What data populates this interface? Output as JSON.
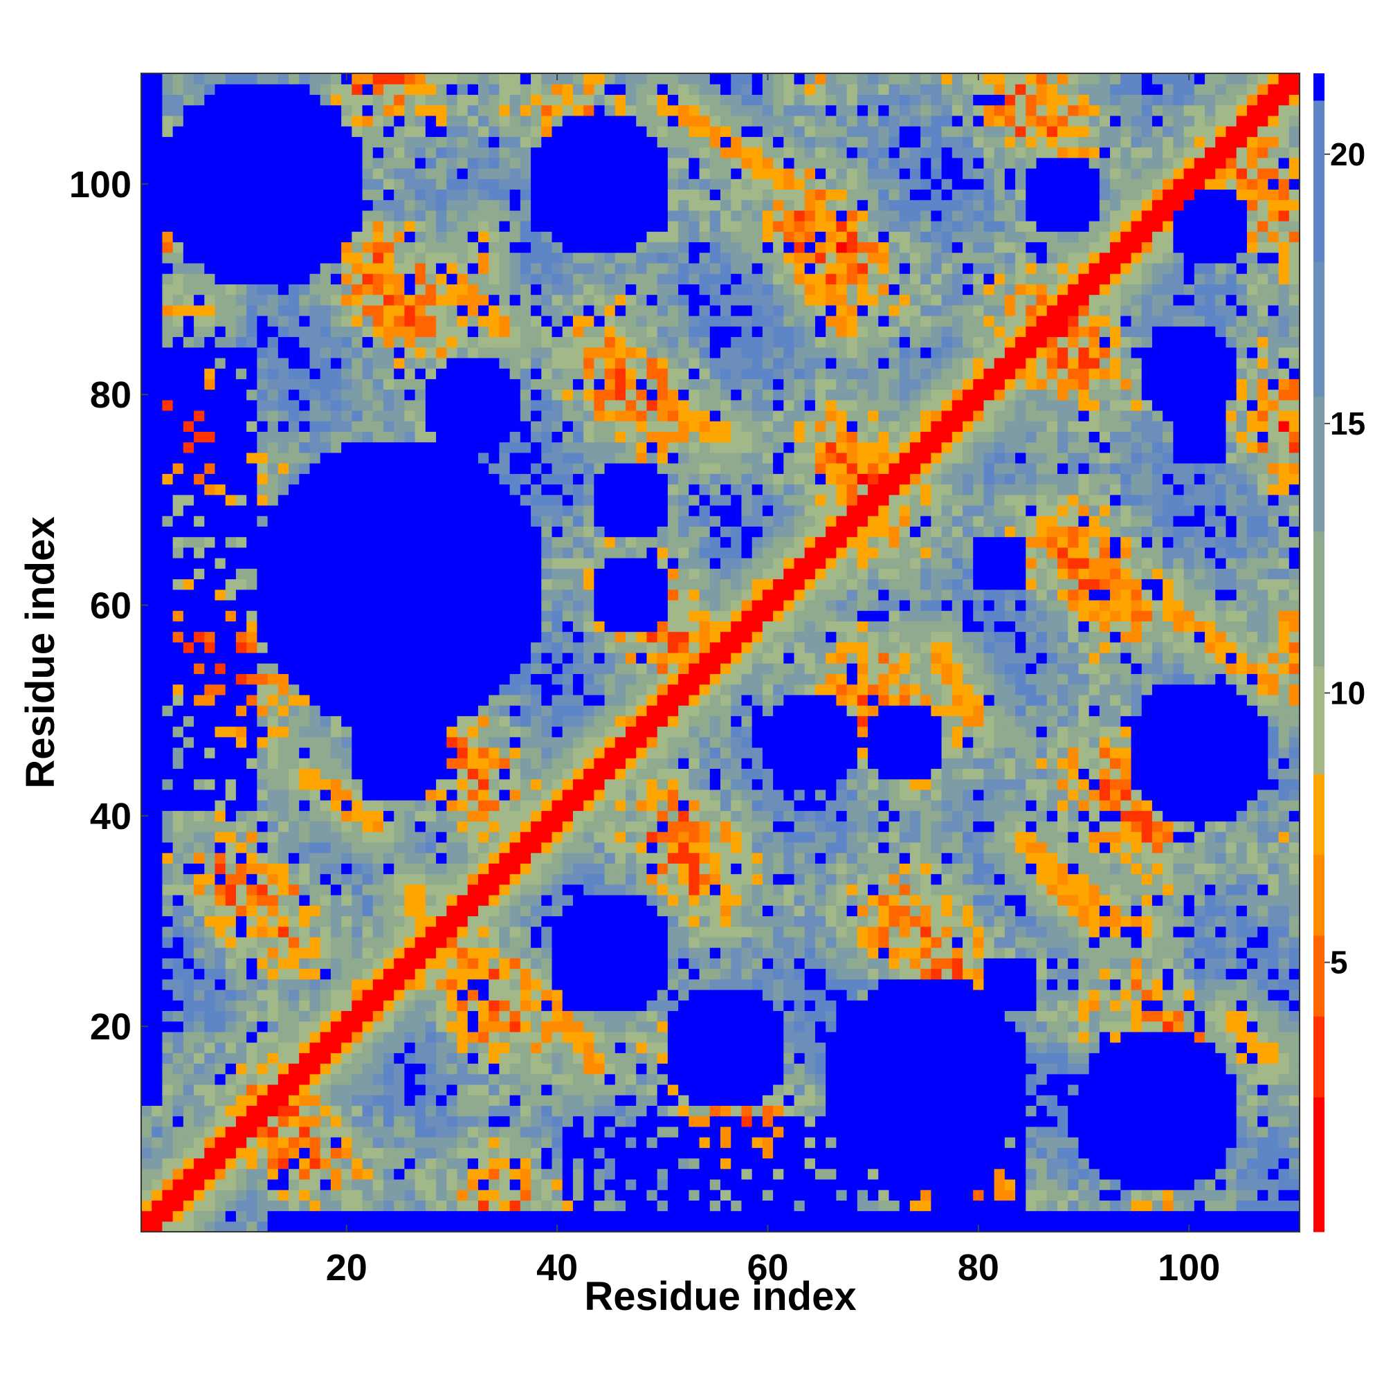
{
  "chart_data": {
    "type": "heatmap",
    "title": "",
    "xlabel": "Residue index",
    "ylabel": "Residue index",
    "n_residues": 110,
    "xlim": [
      1,
      110
    ],
    "ylim": [
      1,
      110
    ],
    "x_ticks": [
      20,
      40,
      60,
      80,
      100
    ],
    "y_ticks": [
      20,
      40,
      60,
      80,
      100
    ],
    "colorbar": {
      "range": [
        0,
        21.5
      ],
      "ticks": [
        5,
        10,
        15,
        20
      ],
      "colors": [
        "#ff0000",
        "#ff3300",
        "#ff6600",
        "#ff8c00",
        "#ffa500",
        "#a3b888",
        "#8faa8f",
        "#7d9ca6",
        "#6b8fba",
        "#5e86c6",
        "#0000ff"
      ],
      "boundaries": [
        0,
        2.5,
        4,
        5.5,
        7,
        8.5,
        10.5,
        13,
        15.5,
        18,
        21,
        21.5
      ]
    },
    "diagonal_band_width": 1.5,
    "contact_bands": [
      {
        "from": [
          3,
          88
        ],
        "to": [
          7,
          88
        ],
        "distance": 6.5,
        "width": 0.8
      },
      {
        "from": [
          16,
          44
        ],
        "to": [
          23,
          39
        ],
        "distance": 6.0,
        "width": 1.0
      },
      {
        "from": [
          39,
          23
        ],
        "to": [
          44,
          16
        ],
        "distance": 6.0,
        "width": 1.0
      },
      {
        "from": [
          33,
          95
        ],
        "to": [
          33,
          92
        ],
        "distance": 6.5,
        "width": 1.0
      },
      {
        "from": [
          29,
          92
        ],
        "to": [
          35,
          86
        ],
        "distance": 6.0,
        "width": 1.0
      },
      {
        "from": [
          86,
          35
        ],
        "to": [
          92,
          29
        ],
        "distance": 6.0,
        "width": 1.0
      },
      {
        "from": [
          50,
          108
        ],
        "to": [
          62,
          100
        ],
        "distance": 6.0,
        "width": 1.0
      },
      {
        "from": [
          62,
          94
        ],
        "to": [
          68,
          86
        ],
        "distance": 6.0,
        "width": 1.0
      },
      {
        "from": [
          49,
          80
        ],
        "to": [
          56,
          76
        ],
        "distance": 6.0,
        "width": 1.0
      },
      {
        "from": [
          76,
          56
        ],
        "to": [
          80,
          49
        ],
        "distance": 6.0,
        "width": 1.0
      },
      {
        "from": [
          86,
          68
        ],
        "to": [
          95,
          60
        ],
        "distance": 6.0,
        "width": 1.0
      },
      {
        "from": [
          98,
          60
        ],
        "to": [
          108,
          52
        ],
        "distance": 6.0,
        "width": 1.0
      },
      {
        "from": [
          84,
          38
        ],
        "to": [
          93,
          30
        ],
        "distance": 6.0,
        "width": 1.0
      },
      {
        "from": [
          93,
          30
        ],
        "to": [
          96,
          29
        ],
        "distance": 6.5,
        "width": 1.0
      },
      {
        "from": [
          104,
          21
        ],
        "to": [
          108,
          17
        ],
        "distance": 6.5,
        "width": 1.0
      },
      {
        "from": [
          26,
          33
        ],
        "to": [
          29,
          26
        ],
        "distance": 7.0,
        "width": 1.0
      },
      {
        "from": [
          14,
          100
        ],
        "to": [
          21,
          106
        ],
        "distance": 7.0,
        "width": 1.0
      },
      {
        "from": [
          65,
          74
        ],
        "to": [
          72,
          66
        ],
        "distance": 7.0,
        "width": 1.0
      }
    ],
    "empty_regions": [
      {
        "center": [
          12,
          100
        ],
        "radius": 10
      },
      {
        "center": [
          44,
          100
        ],
        "radius": 7
      },
      {
        "center": [
          88,
          99
        ],
        "radius": 4
      },
      {
        "center": [
          102,
          96
        ],
        "radius": 4
      },
      {
        "center": [
          32,
          79
        ],
        "radius": 5
      },
      {
        "center": [
          100,
          82
        ],
        "radius": 5
      },
      {
        "center": [
          25,
          62
        ],
        "radius": 14
      },
      {
        "center": [
          47,
          70
        ],
        "radius": 4
      },
      {
        "center": [
          47,
          61
        ],
        "radius": 4
      },
      {
        "center": [
          82,
          64
        ],
        "radius": 3
      },
      {
        "center": [
          25,
          46
        ],
        "radius": 5
      },
      {
        "center": [
          64,
          47
        ],
        "radius": 5
      },
      {
        "center": [
          73,
          47
        ],
        "radius": 4
      },
      {
        "center": [
          101,
          46
        ],
        "radius": 7
      },
      {
        "center": [
          45,
          27
        ],
        "radius": 6
      },
      {
        "center": [
          56,
          18
        ],
        "radius": 6
      },
      {
        "center": [
          75,
          15
        ],
        "radius": 10
      },
      {
        "center": [
          97,
          12
        ],
        "radius": 8
      },
      {
        "center": [
          101,
          76
        ],
        "radius": 3
      },
      {
        "center": [
          83,
          24
        ],
        "radius": 3
      }
    ]
  }
}
